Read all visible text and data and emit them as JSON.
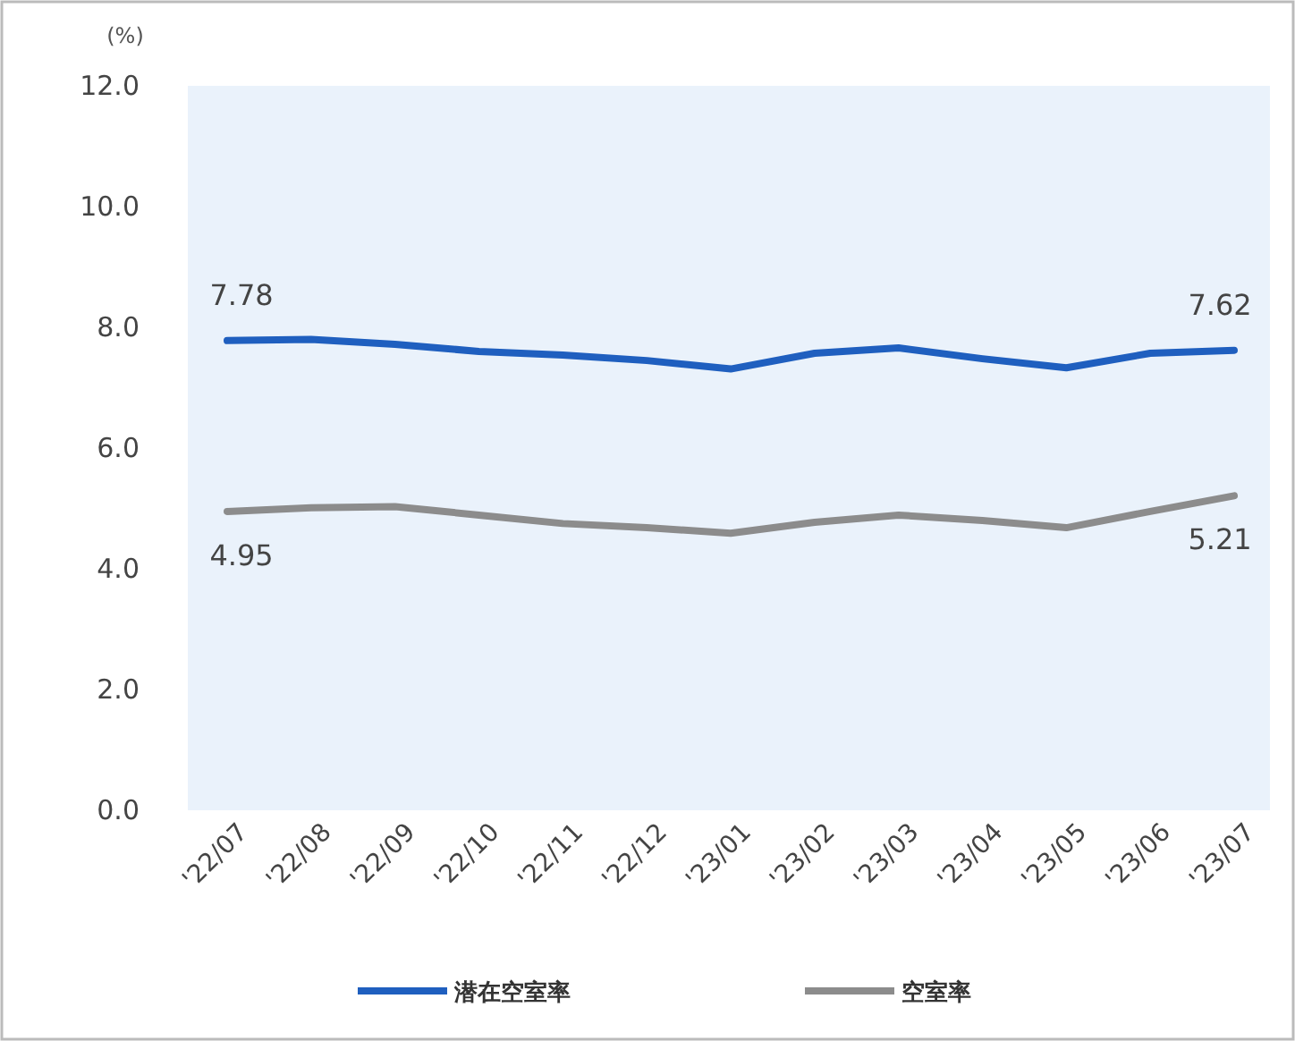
{
  "chart_data": {
    "type": "line",
    "ylabel": "(%)",
    "categories": [
      "'22/07",
      "'22/08",
      "'22/09",
      "'22/10",
      "'22/11",
      "'22/12",
      "'23/01",
      "'23/02",
      "'23/03",
      "'23/04",
      "'23/05",
      "'23/06",
      "'23/07"
    ],
    "series": [
      {
        "name": "潜在空室率",
        "color": "#1f5fbf",
        "values": [
          7.78,
          7.8,
          7.72,
          7.6,
          7.54,
          7.45,
          7.31,
          7.57,
          7.66,
          7.48,
          7.33,
          7.57,
          7.62
        ],
        "value_labels": [
          "7.78",
          null,
          null,
          null,
          null,
          null,
          null,
          null,
          null,
          null,
          null,
          null,
          "7.62"
        ]
      },
      {
        "name": "空室率",
        "color": "#8c8c8c",
        "values": [
          4.95,
          5.01,
          5.03,
          4.89,
          4.75,
          4.68,
          4.59,
          4.77,
          4.89,
          4.8,
          4.68,
          4.95,
          5.21
        ],
        "value_labels": [
          "4.95",
          null,
          null,
          null,
          null,
          null,
          null,
          null,
          null,
          null,
          null,
          null,
          "5.21"
        ]
      }
    ],
    "ylim": [
      0,
      12
    ],
    "yticks": [
      {
        "value": 0,
        "label": "0.0"
      },
      {
        "value": 2,
        "label": "2.0"
      },
      {
        "value": 4,
        "label": "4.0"
      },
      {
        "value": 6,
        "label": "6.0"
      },
      {
        "value": 8,
        "label": "8.0"
      },
      {
        "value": 10,
        "label": "10.0"
      },
      {
        "value": 12,
        "label": "12.0"
      }
    ],
    "legend": "bottom",
    "marker": "none",
    "line_style": "solid"
  }
}
